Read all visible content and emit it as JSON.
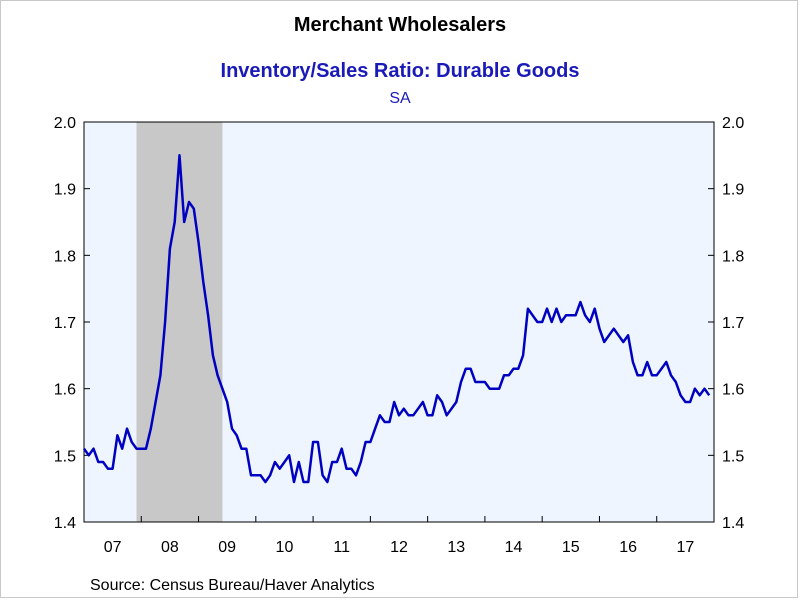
{
  "chart_data": {
    "type": "line",
    "title": "Merchant Wholesalers",
    "subtitle": "Inventory/Sales Ratio: Durable Goods",
    "note": "SA",
    "source": "Source:  Census Bureau/Haver Analytics",
    "xlabel": "",
    "ylabel": "",
    "ylim": [
      1.4,
      2.0
    ],
    "yticks": [
      "1.4",
      "1.5",
      "1.6",
      "1.7",
      "1.8",
      "1.9",
      "2.0"
    ],
    "x_tick_labels": [
      "07",
      "08",
      "09",
      "10",
      "11",
      "12",
      "13",
      "14",
      "15",
      "16",
      "17"
    ],
    "x_start_year": 2007,
    "x_end_year": 2018,
    "grid": false,
    "dual_y_axis": true,
    "recession_shading": {
      "start": "2007-12",
      "end": "2009-06",
      "color": "#c8c8c8"
    },
    "plot_background": "#eef5ff",
    "line_color": "#0000c0",
    "series": [
      {
        "start": "2007-01",
        "frequency": "monthly",
        "values": [
          1.51,
          1.5,
          1.51,
          1.49,
          1.49,
          1.48,
          1.48,
          1.53,
          1.51,
          1.54,
          1.52,
          1.51,
          1.51,
          1.51,
          1.54,
          1.58,
          1.62,
          1.7,
          1.81,
          1.85,
          1.95,
          1.85,
          1.88,
          1.87,
          1.82,
          1.76,
          1.71,
          1.65,
          1.62,
          1.6,
          1.58,
          1.54,
          1.53,
          1.51,
          1.51,
          1.47,
          1.47,
          1.47,
          1.46,
          1.47,
          1.49,
          1.48,
          1.49,
          1.5,
          1.46,
          1.49,
          1.46,
          1.46,
          1.52,
          1.52,
          1.47,
          1.46,
          1.49,
          1.49,
          1.51,
          1.48,
          1.48,
          1.47,
          1.49,
          1.52,
          1.52,
          1.54,
          1.56,
          1.55,
          1.55,
          1.58,
          1.56,
          1.57,
          1.56,
          1.56,
          1.57,
          1.58,
          1.56,
          1.56,
          1.59,
          1.58,
          1.56,
          1.57,
          1.58,
          1.61,
          1.63,
          1.63,
          1.61,
          1.61,
          1.61,
          1.6,
          1.6,
          1.6,
          1.62,
          1.62,
          1.63,
          1.63,
          1.65,
          1.72,
          1.71,
          1.7,
          1.7,
          1.72,
          1.7,
          1.72,
          1.7,
          1.71,
          1.71,
          1.71,
          1.73,
          1.71,
          1.7,
          1.72,
          1.69,
          1.67,
          1.68,
          1.69,
          1.68,
          1.67,
          1.68,
          1.64,
          1.62,
          1.62,
          1.64,
          1.62,
          1.62,
          1.63,
          1.64,
          1.62,
          1.61,
          1.59,
          1.58,
          1.58,
          1.6,
          1.59,
          1.6,
          1.59
        ]
      }
    ]
  }
}
